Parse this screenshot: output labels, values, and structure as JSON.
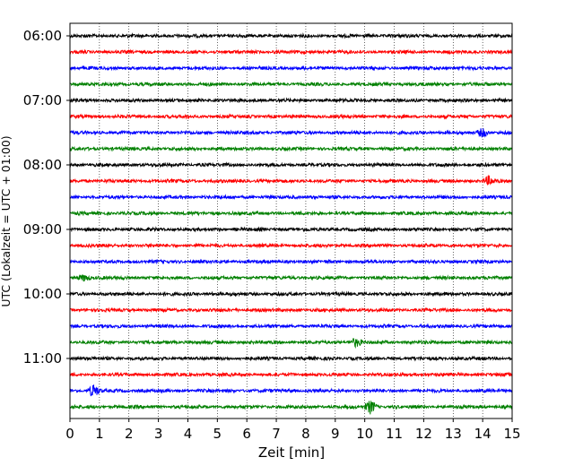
{
  "chart_data": {
    "type": "line",
    "title": "",
    "xlabel": "Zeit  [min]",
    "ylabel": "UTC (Lokalzeit = UTC + 01:00)",
    "xlim": [
      0,
      15
    ],
    "x_ticks": [
      "0",
      "1",
      "2",
      "3",
      "4",
      "5",
      "6",
      "7",
      "8",
      "9",
      "10",
      "11",
      "12",
      "13",
      "14",
      "15"
    ],
    "y_tick_labels": [
      "06:00",
      "07:00",
      "08:00",
      "09:00",
      "10:00",
      "11:00"
    ],
    "grid": "vertical dotted",
    "trace_colors": [
      "#000000",
      "#ff0000",
      "#0000ff",
      "#008000"
    ],
    "trace_start_times": [
      "06:00",
      "06:15",
      "06:30",
      "06:45",
      "07:00",
      "07:15",
      "07:30",
      "07:45",
      "08:00",
      "08:15",
      "08:30",
      "08:45",
      "09:00",
      "09:15",
      "09:30",
      "09:45",
      "10:00",
      "10:15",
      "10:30",
      "10:45",
      "11:00",
      "11:15",
      "11:30",
      "11:45"
    ],
    "trace_duration_min": 15,
    "notable_bursts": [
      {
        "trace": "11:30",
        "x": 0.8,
        "amplitude": 0.35
      },
      {
        "trace": "11:45",
        "x": 10.2,
        "amplitude": 0.4
      },
      {
        "trace": "10:45",
        "x": 9.7,
        "amplitude": 0.25
      },
      {
        "trace": "08:15",
        "x": 14.2,
        "amplitude": 0.25
      },
      {
        "trace": "07:30",
        "x": 14.0,
        "amplitude": 0.25
      },
      {
        "trace": "09:45",
        "x": 0.5,
        "amplitude": 0.2
      }
    ]
  }
}
